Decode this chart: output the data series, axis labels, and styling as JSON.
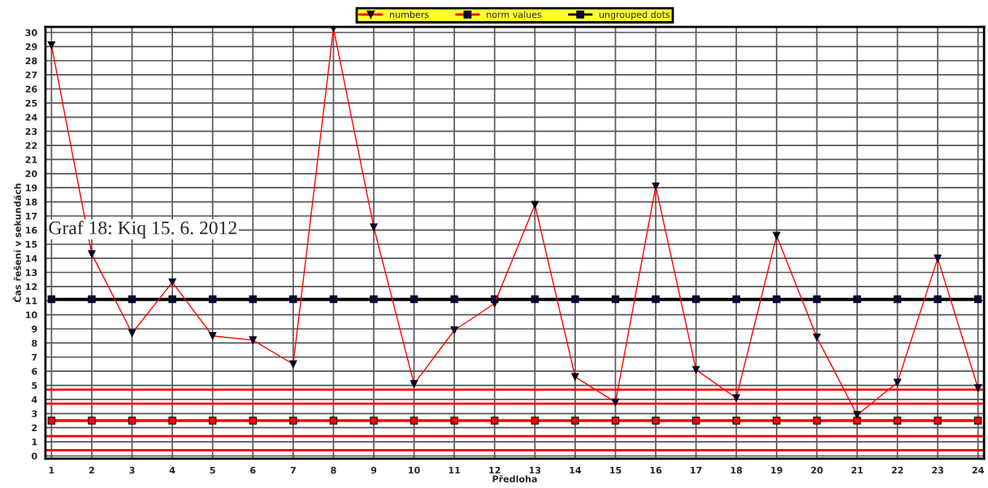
{
  "chart_data": {
    "type": "line",
    "xlabel": "Předloha",
    "ylabel": "Čas řešení v sekundách",
    "x": [
      1,
      2,
      3,
      4,
      5,
      6,
      7,
      8,
      9,
      10,
      11,
      12,
      13,
      14,
      15,
      16,
      17,
      18,
      19,
      20,
      21,
      22,
      23,
      24
    ],
    "series": [
      {
        "name": "numbers",
        "color": "#ff0000",
        "marker": "triangle",
        "values": [
          29.1,
          14.3,
          8.7,
          12.3,
          8.5,
          8.2,
          6.5,
          30.3,
          16.2,
          5.1,
          8.9,
          10.8,
          17.8,
          5.6,
          3.8,
          19.1,
          6.1,
          4.1,
          15.6,
          8.4,
          2.9,
          5.2,
          14.0,
          4.8
        ]
      },
      {
        "name": "norm values",
        "color": "#ff0000",
        "marker": "square",
        "values": [
          2.5,
          2.5,
          2.5,
          2.5,
          2.5,
          2.5,
          2.5,
          2.5,
          2.5,
          2.5,
          2.5,
          2.5,
          2.5,
          2.5,
          2.5,
          2.5,
          2.5,
          2.5,
          2.5,
          2.5,
          2.5,
          2.5,
          2.5,
          2.5
        ]
      },
      {
        "name": "ungrouped dots",
        "color": "#000000",
        "marker": "square",
        "values": [
          11.1,
          11.1,
          11.1,
          11.1,
          11.1,
          11.1,
          11.1,
          11.1,
          11.1,
          11.1,
          11.1,
          11.1,
          11.1,
          11.1,
          11.1,
          11.1,
          11.1,
          11.1,
          11.1,
          11.1,
          11.1,
          11.1,
          11.1,
          11.1
        ]
      }
    ],
    "ref_lines": [
      {
        "axis": "y",
        "value": 0.4,
        "color": "#ff0000"
      },
      {
        "axis": "y",
        "value": 1.4,
        "color": "#ff0000"
      },
      {
        "axis": "y",
        "value": 3.7,
        "color": "#ff0000"
      },
      {
        "axis": "y",
        "value": 4.7,
        "color": "#ff0000"
      }
    ],
    "xlim": [
      0.85,
      24.15
    ],
    "xticks": [
      1,
      2,
      3,
      4,
      5,
      6,
      7,
      8,
      9,
      10,
      11,
      12,
      13,
      14,
      15,
      16,
      17,
      18,
      19,
      20,
      21,
      22,
      23,
      24
    ],
    "ylim": [
      -0.2,
      30.4
    ],
    "yticks": [
      0,
      1,
      2,
      3,
      4,
      5,
      6,
      7,
      8,
      9,
      10,
      11,
      12,
      13,
      14,
      15,
      16,
      17,
      18,
      19,
      20,
      21,
      22,
      23,
      24,
      25,
      26,
      27,
      28,
      29,
      30
    ],
    "grid": true,
    "legend": "top",
    "annotations": [
      {
        "text": "Graf 18: Kiq 15. 6. 2012"
      }
    ]
  }
}
